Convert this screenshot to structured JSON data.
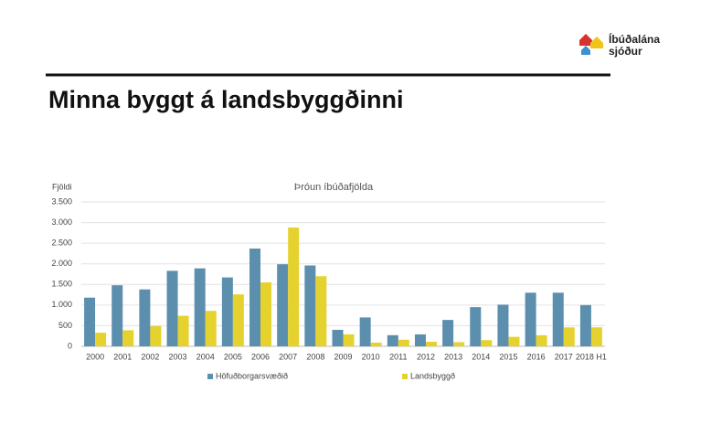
{
  "logo": {
    "line1": "Íbúðalána",
    "line2": "sjóður"
  },
  "title": "Minna byggt á landsbyggðinni",
  "chart_data": {
    "type": "bar",
    "title": "Þróun íbúðafjölda",
    "y_label": "Fjöldi",
    "categories": [
      "2000",
      "2001",
      "2002",
      "2003",
      "2004",
      "2005",
      "2006",
      "2007",
      "2008",
      "2009",
      "2010",
      "2011",
      "2012",
      "2013",
      "2014",
      "2015",
      "2016",
      "2017",
      "2018 H1"
    ],
    "series": [
      {
        "name": "Höfuðborgarsvæðið",
        "color": "#5b8fad",
        "values": [
          1180,
          1480,
          1380,
          1830,
          1890,
          1670,
          2370,
          1990,
          1960,
          400,
          700,
          270,
          290,
          640,
          950,
          1010,
          1300,
          1300,
          1000
        ]
      },
      {
        "name": "Landsbyggð",
        "color": "#e6d22e",
        "values": [
          330,
          390,
          490,
          740,
          860,
          1260,
          1550,
          2880,
          1700,
          290,
          90,
          160,
          110,
          100,
          150,
          230,
          270,
          460,
          460
        ]
      }
    ],
    "ylim": [
      0,
      3500
    ],
    "yticks": [
      0,
      500,
      {
        "value": 1000,
        "label": "1.000"
      },
      {
        "value": 1500,
        "label": "1.500"
      },
      {
        "value": 2000,
        "label": "2.000"
      },
      {
        "value": 2500,
        "label": "2.500"
      },
      {
        "value": 3000,
        "label": "3.000"
      },
      {
        "value": 3500,
        "label": "3.500"
      }
    ],
    "grid": true,
    "legend": "bottom"
  }
}
